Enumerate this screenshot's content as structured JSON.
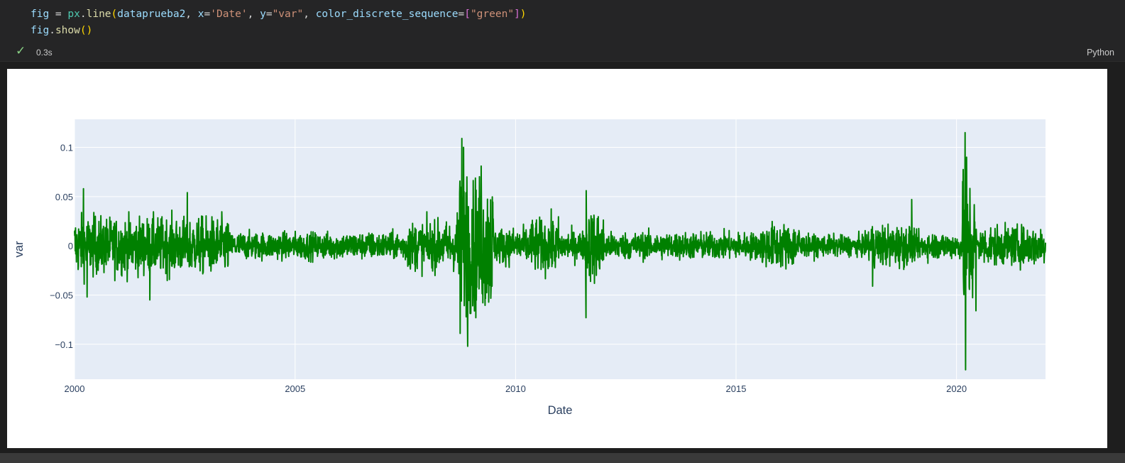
{
  "code": {
    "line1": {
      "fig": "fig",
      "eq": " = ",
      "mod": "px",
      "dot": ".",
      "fn": "line",
      "open": "(",
      "arg1": "dataprueba2",
      "comma1": ", ",
      "kx": "x",
      "eq2": "=",
      "sx": "'Date'",
      "comma2": ", ",
      "ky": "y",
      "eq3": "=",
      "sy": "\"var\"",
      "comma3": ", ",
      "kc": "color_discrete_sequence",
      "eq4": "=",
      "lb": "[",
      "sc": "\"green\"",
      "rb": "]",
      "close": ")"
    },
    "line2": {
      "fig": "fig",
      "dot": ".",
      "fn": "show",
      "parens": "()"
    }
  },
  "status": {
    "time": "0.3s",
    "language": "Python",
    "check_icon": "check-icon",
    "success_color": "#89d185"
  },
  "chart_data": {
    "type": "line",
    "xlabel": "Date",
    "ylabel": "var",
    "line_color": "#008000",
    "plot_bg": "#e5ecf6",
    "x_range": [
      "2000-01-01",
      "2022-01-07"
    ],
    "ylim": [
      -0.1355,
      0.1285
    ],
    "x_ticks": [
      {
        "value": "2000-01-01",
        "label": "2000"
      },
      {
        "value": "2005-01-01",
        "label": "2005"
      },
      {
        "value": "2010-01-01",
        "label": "2010"
      },
      {
        "value": "2015-01-01",
        "label": "2015"
      },
      {
        "value": "2020-01-01",
        "label": "2020"
      }
    ],
    "y_ticks": [
      {
        "value": 0.1,
        "label": "0.1"
      },
      {
        "value": 0.05,
        "label": "0.05"
      },
      {
        "value": 0,
        "label": "0"
      },
      {
        "value": -0.05,
        "label": "−0.05"
      },
      {
        "value": -0.1,
        "label": "−0.1"
      }
    ],
    "volatility_regimes": [
      {
        "start": "2000-01-01",
        "end": "2000-06-30",
        "amplitude": 0.02
      },
      {
        "start": "2000-07-01",
        "end": "2003-06-30",
        "amplitude": 0.019
      },
      {
        "start": "2003-07-01",
        "end": "2007-06-30",
        "amplitude": 0.009
      },
      {
        "start": "2007-07-01",
        "end": "2008-08-31",
        "amplitude": 0.016
      },
      {
        "start": "2008-09-01",
        "end": "2009-06-30",
        "amplitude": 0.045
      },
      {
        "start": "2009-07-01",
        "end": "2010-04-30",
        "amplitude": 0.012
      },
      {
        "start": "2010-05-01",
        "end": "2010-12-31",
        "amplitude": 0.018
      },
      {
        "start": "2011-01-01",
        "end": "2011-07-31",
        "amplitude": 0.01
      },
      {
        "start": "2011-08-01",
        "end": "2011-12-31",
        "amplitude": 0.024
      },
      {
        "start": "2012-01-01",
        "end": "2015-07-31",
        "amplitude": 0.009
      },
      {
        "start": "2015-08-01",
        "end": "2016-06-30",
        "amplitude": 0.015
      },
      {
        "start": "2016-07-01",
        "end": "2017-12-31",
        "amplitude": 0.007
      },
      {
        "start": "2018-01-01",
        "end": "2018-12-31",
        "amplitude": 0.014
      },
      {
        "start": "2019-01-01",
        "end": "2020-02-15",
        "amplitude": 0.009
      },
      {
        "start": "2020-02-16",
        "end": "2020-05-31",
        "amplitude": 0.045
      },
      {
        "start": "2020-06-01",
        "end": "2022-01-07",
        "amplitude": 0.013
      }
    ],
    "spikes": [
      {
        "date": "2000-03-15",
        "value": 0.058
      },
      {
        "date": "2000-04-14",
        "value": -0.052
      },
      {
        "date": "2001-09-17",
        "value": -0.055
      },
      {
        "date": "2002-07-24",
        "value": 0.054
      },
      {
        "date": "2008-09-29",
        "value": -0.089
      },
      {
        "date": "2008-10-13",
        "value": 0.109
      },
      {
        "date": "2008-10-28",
        "value": 0.1
      },
      {
        "date": "2008-11-20",
        "value": -0.07
      },
      {
        "date": "2008-12-01",
        "value": -0.102
      },
      {
        "date": "2008-11-24",
        "value": 0.07
      },
      {
        "date": "2009-03-23",
        "value": 0.081
      },
      {
        "date": "2011-08-08",
        "value": -0.073
      },
      {
        "date": "2011-08-09",
        "value": 0.056
      },
      {
        "date": "2018-02-05",
        "value": -0.041
      },
      {
        "date": "2018-12-26",
        "value": 0.047
      },
      {
        "date": "2020-03-12",
        "value": -0.104
      },
      {
        "date": "2020-03-16",
        "value": -0.126
      },
      {
        "date": "2020-03-13",
        "value": 0.115
      },
      {
        "date": "2020-03-24",
        "value": 0.09
      },
      {
        "date": "2020-06-11",
        "value": -0.066
      }
    ]
  }
}
